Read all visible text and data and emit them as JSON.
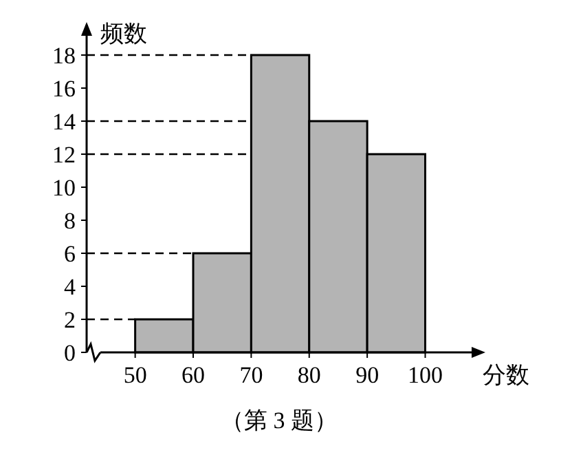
{
  "chart_data": {
    "type": "histogram",
    "xlabel": "分数",
    "ylabel": "频数",
    "bins": [
      50,
      60,
      70,
      80,
      90,
      100
    ],
    "values": [
      2,
      6,
      18,
      14,
      12
    ],
    "color": "#b4b4b4",
    "xlim": [
      44,
      108
    ],
    "xticks": [
      50,
      60,
      70,
      80,
      90,
      100
    ],
    "ylim": [
      0,
      20
    ],
    "yticks": [
      0,
      2,
      4,
      6,
      8,
      10,
      12,
      14,
      16,
      18
    ],
    "ref_lines": [
      {
        "axis": "y",
        "value": 2,
        "line_style": "dashed",
        "color": "#000000"
      },
      {
        "axis": "y",
        "value": 6,
        "line_style": "dashed",
        "color": "#000000"
      },
      {
        "axis": "y",
        "value": 12,
        "line_style": "dashed",
        "color": "#000000"
      },
      {
        "axis": "y",
        "value": 14,
        "line_style": "dashed",
        "color": "#000000"
      },
      {
        "axis": "y",
        "value": 18,
        "line_style": "dashed",
        "color": "#000000"
      }
    ],
    "grid": false,
    "annotations": [
      "（第 3 题）"
    ]
  }
}
